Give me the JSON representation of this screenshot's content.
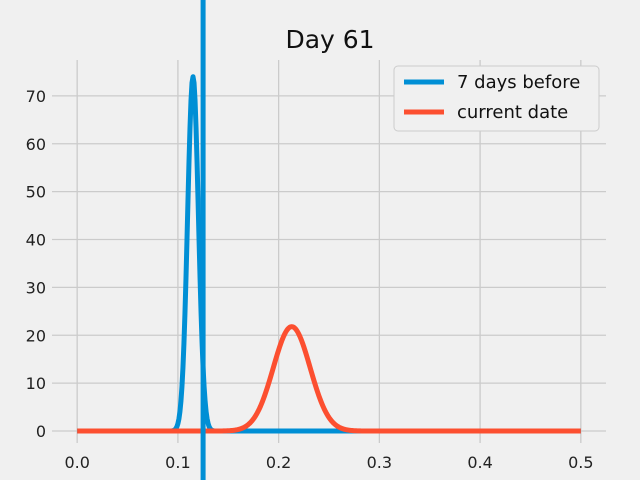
{
  "chart_data": {
    "type": "line",
    "title": "Day 61",
    "xlabel": "",
    "ylabel": "",
    "xlim": [
      -0.025,
      0.525
    ],
    "ylim": [
      -2.5,
      77.5
    ],
    "xticks": [
      0.0,
      0.1,
      0.2,
      0.3,
      0.4,
      0.5
    ],
    "xtick_labels": [
      "0.0",
      "0.1",
      "0.2",
      "0.3",
      "0.4",
      "0.5"
    ],
    "yticks": [
      0,
      10,
      20,
      30,
      40,
      50,
      60,
      70
    ],
    "ytick_labels": [
      "0",
      "10",
      "20",
      "30",
      "40",
      "50",
      "60",
      "70"
    ],
    "grid": true,
    "legend_position": "top-right",
    "series": [
      {
        "name": "7 days before",
        "color": "#008fd5",
        "distribution": "normal",
        "mean": 0.115,
        "peak": 74,
        "x_range": [
          0.0,
          0.5
        ],
        "points": 500
      },
      {
        "name": "current date",
        "color": "#fc4f30",
        "distribution": "normal",
        "mean": 0.213,
        "peak": 21.8,
        "x_range": [
          0.0,
          0.5
        ],
        "points": 500
      }
    ],
    "vlines": [
      {
        "x": 0.125,
        "color": "#008fd5"
      }
    ]
  }
}
